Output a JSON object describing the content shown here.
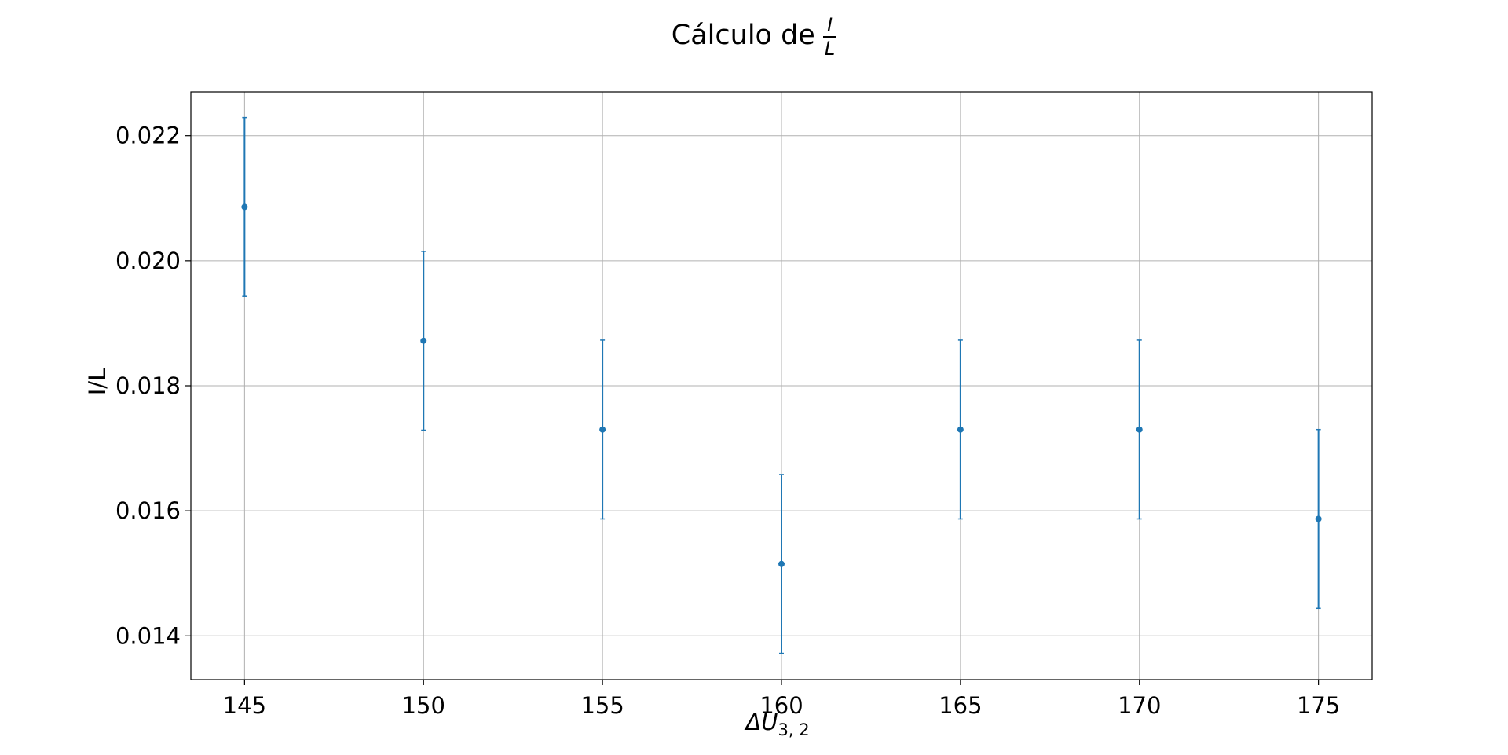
{
  "chart_data": {
    "type": "scatter",
    "title_prefix": "Cálculo de",
    "title_frac_num": "I",
    "title_frac_den": "L",
    "xlabel_symbol": "ΔU",
    "xlabel_sub": "3, 2",
    "ylabel": "I/L",
    "x": [
      145,
      150,
      155,
      160,
      165,
      170,
      175
    ],
    "y": [
      0.02086,
      0.01872,
      0.0173,
      0.01515,
      0.0173,
      0.0173,
      0.01587
    ],
    "yerr": [
      0.00143,
      0.00143,
      0.00143,
      0.00143,
      0.00143,
      0.00143,
      0.00143
    ],
    "xlim": [
      143.5,
      176.5
    ],
    "ylim": [
      0.0133,
      0.0227
    ],
    "xticks": [
      145,
      150,
      155,
      160,
      165,
      170,
      175
    ],
    "xtick_labels": [
      "145",
      "150",
      "155",
      "160",
      "165",
      "170",
      "175"
    ],
    "yticks": [
      0.014,
      0.016,
      0.018,
      0.02,
      0.022
    ],
    "ytick_labels": [
      "0.014",
      "0.016",
      "0.018",
      "0.020",
      "0.022"
    ],
    "grid": true,
    "marker": "circle",
    "color": "#1f77b4"
  }
}
